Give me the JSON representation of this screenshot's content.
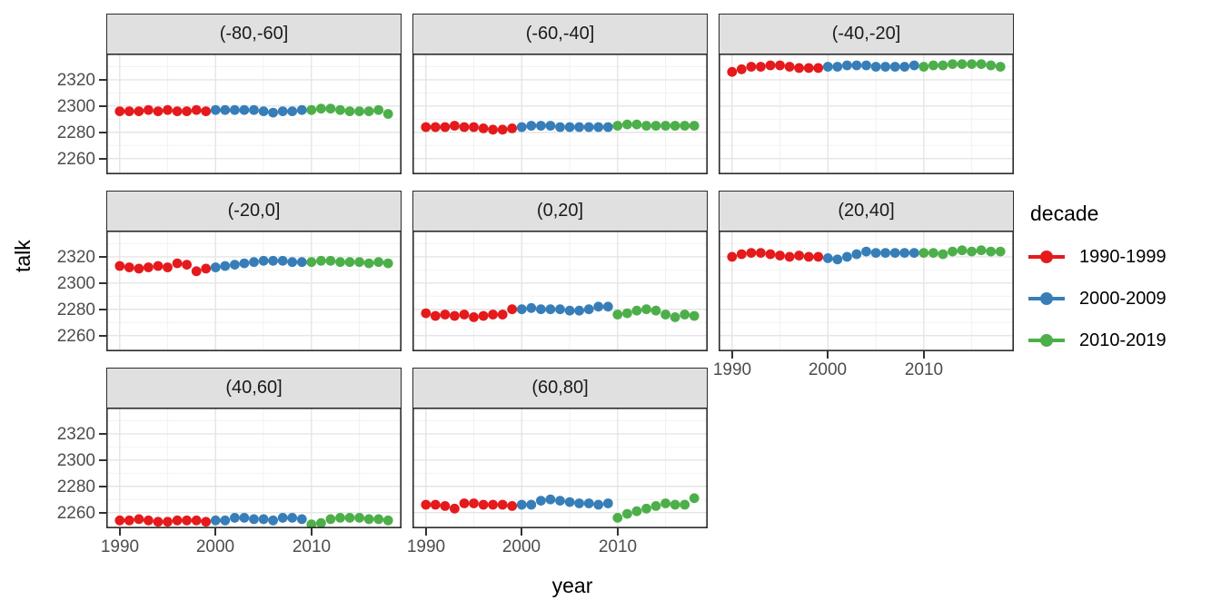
{
  "chart_data": {
    "type": "scatter",
    "title": "",
    "xlabel": "year",
    "ylabel": "talk",
    "x_domain": [
      1988.6,
      2019.4
    ],
    "y_domain": [
      2248,
      2340
    ],
    "x_ticks": [
      {
        "value": 1990,
        "label": "1990"
      },
      {
        "value": 2000,
        "label": "2000"
      },
      {
        "value": 2010,
        "label": "2010"
      }
    ],
    "y_ticks": [
      {
        "value": 2260,
        "label": "2260"
      },
      {
        "value": 2280,
        "label": "2280"
      },
      {
        "value": 2300,
        "label": "2300"
      },
      {
        "value": 2320,
        "label": "2320"
      }
    ],
    "x_major_gridlines": [
      1990,
      2000,
      2010
    ],
    "x_minor_gridlines": [
      1995,
      2005,
      2015
    ],
    "y_major_gridlines": [
      2260,
      2280,
      2300,
      2320
    ],
    "y_minor_gridlines": [
      2250,
      2270,
      2290,
      2310,
      2330
    ],
    "grid": true,
    "legend": {
      "title": "decade",
      "position": "right",
      "entries": [
        {
          "name": "1990-1999",
          "color": "#E41A1C"
        },
        {
          "name": "2000-2009",
          "color": "#377EB8"
        },
        {
          "name": "2010-2019",
          "color": "#4DAF4A"
        }
      ]
    },
    "series_years": {
      "1990-1999": [
        1990,
        1991,
        1992,
        1993,
        1994,
        1995,
        1996,
        1997,
        1998,
        1999
      ],
      "2000-2009": [
        2000,
        2001,
        2002,
        2003,
        2004,
        2005,
        2006,
        2007,
        2008,
        2009
      ],
      "2010-2019": [
        2010,
        2011,
        2012,
        2013,
        2014,
        2015,
        2016,
        2017,
        2018
      ]
    },
    "facets": [
      {
        "title": "(-80,-60]",
        "series": [
          {
            "name": "1990-1999",
            "values": [
              2296,
              2296,
              2296,
              2297,
              2296,
              2297,
              2296,
              2296,
              2297,
              2296
            ]
          },
          {
            "name": "2000-2009",
            "values": [
              2297,
              2297,
              2297,
              2297,
              2297,
              2296,
              2295,
              2296,
              2296,
              2297
            ]
          },
          {
            "name": "2010-2019",
            "values": [
              2297,
              2298,
              2298,
              2297,
              2296,
              2296,
              2296,
              2297,
              2294
            ]
          }
        ]
      },
      {
        "title": "(-60,-40]",
        "series": [
          {
            "name": "1990-1999",
            "values": [
              2284,
              2284,
              2284,
              2285,
              2284,
              2284,
              2283,
              2282,
              2282,
              2283
            ]
          },
          {
            "name": "2000-2009",
            "values": [
              2284,
              2285,
              2285,
              2285,
              2284,
              2284,
              2284,
              2284,
              2284,
              2284
            ]
          },
          {
            "name": "2010-2019",
            "values": [
              2285,
              2286,
              2286,
              2285,
              2285,
              2285,
              2285,
              2285,
              2285
            ]
          }
        ]
      },
      {
        "title": "(-40,-20]",
        "series": [
          {
            "name": "1990-1999",
            "values": [
              2326,
              2328,
              2330,
              2330,
              2331,
              2331,
              2330,
              2329,
              2329,
              2329
            ]
          },
          {
            "name": "2000-2009",
            "values": [
              2330,
              2330,
              2331,
              2331,
              2331,
              2330,
              2330,
              2330,
              2330,
              2331
            ]
          },
          {
            "name": "2010-2019",
            "values": [
              2330,
              2331,
              2331,
              2332,
              2332,
              2332,
              2332,
              2331,
              2330
            ]
          }
        ]
      },
      {
        "title": "(-20,0]",
        "series": [
          {
            "name": "1990-1999",
            "values": [
              2313,
              2312,
              2311,
              2312,
              2313,
              2312,
              2315,
              2314,
              2309,
              2311
            ]
          },
          {
            "name": "2000-2009",
            "values": [
              2312,
              2313,
              2314,
              2315,
              2316,
              2317,
              2317,
              2317,
              2316,
              2316
            ]
          },
          {
            "name": "2010-2019",
            "values": [
              2316,
              2317,
              2317,
              2316,
              2316,
              2316,
              2315,
              2316,
              2315
            ]
          }
        ]
      },
      {
        "title": "(0,20]",
        "series": [
          {
            "name": "1990-1999",
            "values": [
              2277,
              2275,
              2276,
              2275,
              2276,
              2274,
              2275,
              2276,
              2276,
              2280
            ]
          },
          {
            "name": "2000-2009",
            "values": [
              2280,
              2281,
              2280,
              2280,
              2280,
              2279,
              2279,
              2280,
              2282,
              2282
            ]
          },
          {
            "name": "2010-2019",
            "values": [
              2276,
              2277,
              2279,
              2280,
              2279,
              2276,
              2274,
              2276,
              2275
            ]
          }
        ]
      },
      {
        "title": "(20,40]",
        "series": [
          {
            "name": "1990-1999",
            "values": [
              2320,
              2322,
              2323,
              2323,
              2322,
              2321,
              2320,
              2321,
              2320,
              2320
            ]
          },
          {
            "name": "2000-2009",
            "values": [
              2319,
              2318,
              2320,
              2322,
              2324,
              2323,
              2323,
              2323,
              2323,
              2323
            ]
          },
          {
            "name": "2010-2019",
            "values": [
              2323,
              2323,
              2322,
              2324,
              2325,
              2324,
              2325,
              2324,
              2324
            ]
          }
        ]
      },
      {
        "title": "(40,60]",
        "series": [
          {
            "name": "1990-1999",
            "values": [
              2254,
              2254,
              2255,
              2254,
              2253,
              2253,
              2254,
              2254,
              2254,
              2253
            ]
          },
          {
            "name": "2000-2009",
            "values": [
              2254,
              2254,
              2256,
              2256,
              2255,
              2255,
              2254,
              2256,
              2256,
              2255
            ]
          },
          {
            "name": "2010-2019",
            "values": [
              2251,
              2252,
              2255,
              2256,
              2256,
              2256,
              2255,
              2255,
              2254
            ]
          }
        ]
      },
      {
        "title": "(60,80]",
        "series": [
          {
            "name": "1990-1999",
            "values": [
              2266,
              2266,
              2265,
              2263,
              2267,
              2267,
              2266,
              2266,
              2266,
              2265
            ]
          },
          {
            "name": "2000-2009",
            "values": [
              2266,
              2266,
              2269,
              2270,
              2269,
              2268,
              2267,
              2267,
              2266,
              2267
            ]
          },
          {
            "name": "2010-2019",
            "values": [
              2256,
              2259,
              2261,
              2263,
              2265,
              2267,
              2266,
              2266,
              2271
            ]
          }
        ]
      }
    ],
    "style_colors": {
      "strip_fill": "#e0e0e0",
      "panel_border": "#2b2b2b",
      "major_grid": "#e5e5e5",
      "minor_grid": "#f2f2f2",
      "tick_text": "#4d4d4d"
    }
  }
}
